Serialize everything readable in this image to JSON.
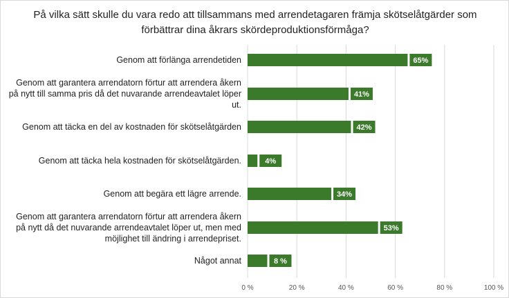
{
  "chart_data": {
    "type": "bar",
    "orientation": "horizontal",
    "title": "På vilka sätt skulle du vara redo att tillsammans med arrendetagaren främja skötselåtgärder som förbättrar dina åkrars skördeproduktionsförmåga?",
    "categories": [
      "Genom att förlänga arrendetiden",
      "Genom att garantera arrendatorn förtur att arrendera åkern på nytt till samma pris då det nuvarande arrendeavtalet löper ut.",
      "Genom att täcka en del av kostnaden för skötselåtgärden",
      "Genom att täcka hela kostnaden för skötselåtgärden.",
      "Genom att begära ett lägre arrende.",
      "Genom att garantera arrendatorn förtur att arrendera åkern på nytt då det nuvarande arrendeavtalet löper ut, men med möjlighet till ändring i arrendepriset.",
      "Något annat"
    ],
    "values": [
      65,
      41,
      42,
      4,
      34,
      53,
      8
    ],
    "data_labels": [
      "65%",
      "41%",
      "42%",
      "4%",
      "34%",
      "53%",
      "8 %"
    ],
    "xlim": [
      0,
      100
    ],
    "xticks": [
      0,
      20,
      40,
      60,
      80,
      100
    ],
    "xtick_labels": [
      "0 %",
      "20 %",
      "40 %",
      "60 %",
      "80 %",
      "100 %"
    ],
    "colors": {
      "bar": "#3b7a2a",
      "grid": "#d9d9d9"
    },
    "grid": true,
    "legend": "none"
  }
}
